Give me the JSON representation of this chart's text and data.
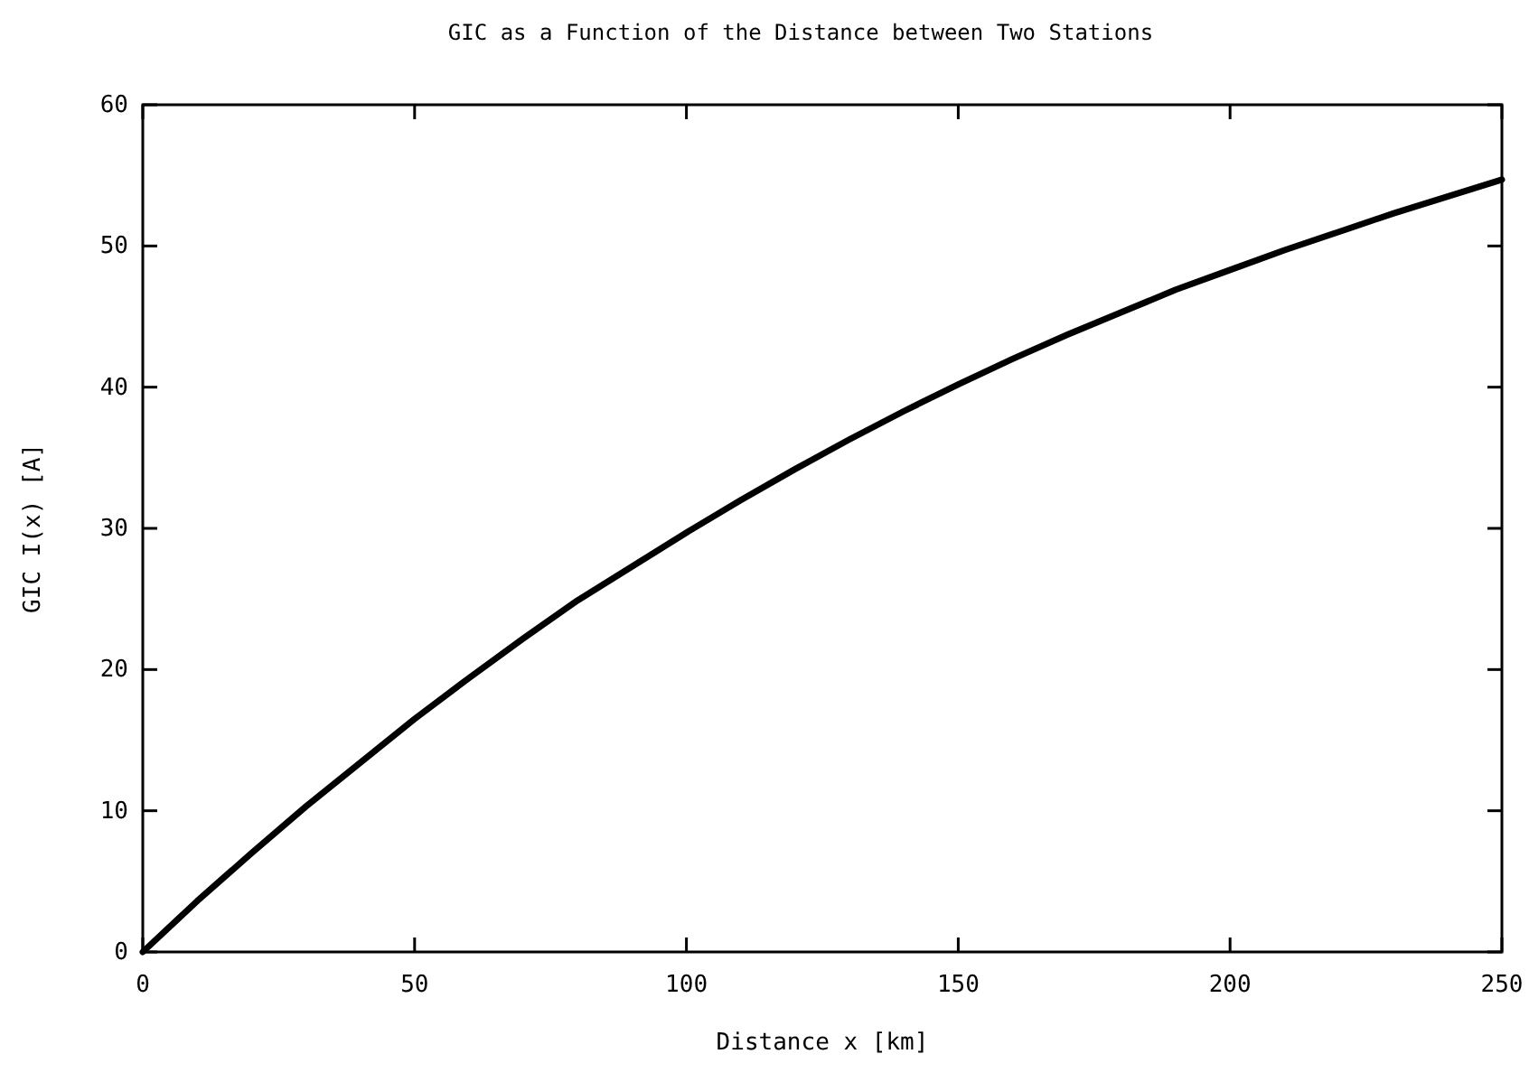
{
  "chart_data": {
    "type": "line",
    "title": "GIC as a Function of the Distance between Two Stations",
    "xlabel": "Distance  x  [km]",
    "ylabel": "GIC  I(x)  [A]",
    "x": [
      0,
      10,
      20,
      30,
      40,
      50,
      60,
      70,
      80,
      90,
      100,
      110,
      120,
      130,
      140,
      150,
      160,
      170,
      180,
      190,
      200,
      210,
      220,
      230,
      240,
      250
    ],
    "series": [
      {
        "color": "#000000",
        "values": [
          0,
          3.6,
          7.0,
          10.3,
          13.4,
          16.5,
          19.4,
          22.2,
          24.9,
          27.3,
          29.7,
          32.0,
          34.2,
          36.3,
          38.3,
          40.2,
          42.0,
          43.7,
          45.3,
          46.9,
          48.3,
          49.7,
          51.0,
          52.3,
          53.5,
          54.7
        ]
      }
    ],
    "xlim": [
      0,
      250
    ],
    "xticks": [
      0,
      50,
      100,
      150,
      200,
      250
    ],
    "ylim": [
      0,
      60
    ],
    "yticks": [
      0,
      10,
      20,
      30,
      40,
      50,
      60
    ],
    "grid": false,
    "marker": "none",
    "line_style": "solid"
  }
}
